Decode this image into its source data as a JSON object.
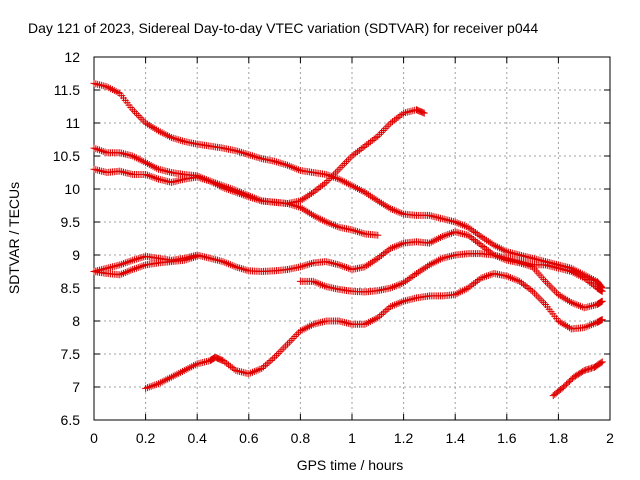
{
  "chart_data": {
    "type": "scatter",
    "title": "Day 121 of 2023, Sidereal Day-to-day VTEC variation (SDTVAR) for receiver p044",
    "xlabel": "GPS time / hours",
    "ylabel": "SDTVAR / TECUs",
    "xlim": [
      0,
      2
    ],
    "ylim": [
      6.5,
      12
    ],
    "xticks": [
      "0",
      "0.2",
      "0.4",
      "0.6",
      "0.8",
      "1",
      "1.2",
      "1.4",
      "1.6",
      "1.8",
      "2"
    ],
    "yticks": [
      "6.5",
      "7",
      "7.5",
      "8",
      "8.5",
      "9",
      "9.5",
      "10",
      "10.5",
      "11",
      "11.5",
      "12"
    ],
    "grid": true,
    "marker": "plus",
    "marker_color": "#e00000",
    "series": [
      {
        "name": "s1",
        "x": [
          0.0,
          0.05,
          0.1,
          0.15,
          0.2,
          0.25,
          0.3,
          0.35,
          0.4,
          0.45,
          0.5,
          0.55,
          0.6,
          0.65,
          0.7,
          0.75,
          0.8,
          0.85,
          0.9,
          0.95,
          1.0,
          1.05,
          1.1,
          1.15,
          1.2,
          1.25,
          1.3,
          1.35,
          1.4,
          1.45,
          1.5,
          1.55,
          1.6,
          1.65,
          1.7,
          1.75,
          1.8,
          1.85,
          1.9,
          1.95,
          1.97
        ],
        "y": [
          11.6,
          11.55,
          11.45,
          11.2,
          11.0,
          10.88,
          10.78,
          10.72,
          10.68,
          10.65,
          10.62,
          10.58,
          10.52,
          10.46,
          10.42,
          10.36,
          10.28,
          10.25,
          10.22,
          10.15,
          10.05,
          9.95,
          9.82,
          9.7,
          9.62,
          9.6,
          9.6,
          9.55,
          9.5,
          9.42,
          9.28,
          9.15,
          9.05,
          9.0,
          8.95,
          8.9,
          8.85,
          8.8,
          8.7,
          8.6,
          8.5
        ]
      },
      {
        "name": "s2",
        "x": [
          0.0,
          0.05,
          0.1,
          0.15,
          0.2,
          0.25,
          0.3,
          0.35,
          0.4,
          0.45,
          0.5,
          0.55,
          0.6,
          0.65,
          0.7,
          0.75,
          0.8,
          0.85,
          0.9,
          0.95,
          1.0,
          1.05,
          1.1
        ],
        "y": [
          10.62,
          10.55,
          10.55,
          10.5,
          10.4,
          10.3,
          10.25,
          10.22,
          10.2,
          10.12,
          10.02,
          9.95,
          9.88,
          9.82,
          9.8,
          9.78,
          9.72,
          9.6,
          9.5,
          9.42,
          9.38,
          9.32,
          9.3
        ]
      },
      {
        "name": "s3",
        "x": [
          0.0,
          0.05,
          0.1,
          0.15,
          0.2,
          0.25,
          0.3,
          0.35,
          0.4,
          0.45,
          0.5,
          0.55,
          0.6,
          0.65,
          0.7,
          0.75,
          0.8,
          0.85,
          0.9,
          0.95,
          1.0,
          1.05,
          1.1,
          1.15,
          1.2,
          1.25,
          1.28
        ],
        "y": [
          10.3,
          10.25,
          10.27,
          10.22,
          10.22,
          10.15,
          10.1,
          10.15,
          10.18,
          10.12,
          10.05,
          9.98,
          9.9,
          9.82,
          9.8,
          9.78,
          9.82,
          9.95,
          10.1,
          10.3,
          10.5,
          10.65,
          10.8,
          11.0,
          11.15,
          11.2,
          11.15
        ]
      },
      {
        "name": "s4",
        "x": [
          0.0,
          0.05,
          0.1,
          0.15,
          0.2,
          0.25,
          0.3,
          0.35,
          0.4,
          0.45,
          0.5,
          0.55,
          0.6,
          0.65,
          0.7,
          0.75,
          0.8,
          0.85,
          0.9,
          0.95,
          1.0,
          1.05,
          1.1,
          1.15,
          1.2,
          1.25,
          1.3,
          1.35,
          1.4,
          1.45,
          1.5,
          1.55,
          1.6,
          1.65,
          1.7,
          1.75,
          1.8,
          1.85,
          1.9,
          1.95,
          1.97
        ],
        "y": [
          8.75,
          8.8,
          8.85,
          8.92,
          8.98,
          8.95,
          8.92,
          8.95,
          9.0,
          8.95,
          8.9,
          8.82,
          8.76,
          8.75,
          8.76,
          8.78,
          8.82,
          8.88,
          8.9,
          8.85,
          8.78,
          8.82,
          8.95,
          9.1,
          9.18,
          9.2,
          9.18,
          9.28,
          9.35,
          9.3,
          9.15,
          9.0,
          8.92,
          8.88,
          8.82,
          8.6,
          8.4,
          8.28,
          8.2,
          8.25,
          8.3
        ]
      },
      {
        "name": "s5",
        "x": [
          0.0,
          0.05,
          0.1,
          0.15,
          0.2,
          0.25,
          0.3,
          0.35,
          0.4
        ],
        "y": [
          8.75,
          8.72,
          8.7,
          8.78,
          8.85,
          8.88,
          8.9,
          8.92,
          8.98
        ]
      },
      {
        "name": "s6",
        "x": [
          0.8,
          0.85,
          0.9,
          0.95,
          1.0,
          1.05,
          1.1,
          1.15,
          1.2,
          1.25,
          1.3,
          1.35,
          1.4,
          1.45,
          1.5,
          1.55,
          1.6,
          1.65,
          1.7,
          1.75,
          1.8,
          1.85,
          1.9,
          1.95,
          1.97
        ],
        "y": [
          8.6,
          8.6,
          8.52,
          8.48,
          8.45,
          8.44,
          8.46,
          8.5,
          8.58,
          8.72,
          8.85,
          8.95,
          9.0,
          9.02,
          9.02,
          9.0,
          8.95,
          8.9,
          8.85,
          8.85,
          8.8,
          8.75,
          8.65,
          8.5,
          8.45
        ]
      },
      {
        "name": "s7",
        "x": [
          0.2,
          0.25,
          0.3,
          0.35,
          0.4,
          0.45,
          0.47,
          0.5,
          0.55,
          0.6,
          0.65,
          0.7,
          0.75,
          0.8,
          0.85,
          0.9,
          0.95,
          1.0,
          1.05,
          1.1,
          1.15,
          1.2,
          1.25,
          1.3,
          1.35,
          1.4,
          1.45,
          1.5,
          1.55,
          1.6,
          1.65,
          1.7,
          1.75,
          1.8,
          1.85,
          1.9,
          1.95,
          1.97
        ],
        "y": [
          6.98,
          7.05,
          7.15,
          7.25,
          7.35,
          7.4,
          7.45,
          7.4,
          7.25,
          7.2,
          7.28,
          7.45,
          7.65,
          7.85,
          7.95,
          8.0,
          8.0,
          7.95,
          7.95,
          8.05,
          8.22,
          8.3,
          8.35,
          8.38,
          8.38,
          8.4,
          8.5,
          8.65,
          8.72,
          8.68,
          8.6,
          8.45,
          8.25,
          8.0,
          7.88,
          7.9,
          7.98,
          8.02
        ]
      },
      {
        "name": "s8",
        "x": [
          1.78,
          1.82,
          1.86,
          1.9,
          1.94,
          1.97
        ],
        "y": [
          6.87,
          7.0,
          7.15,
          7.25,
          7.3,
          7.38
        ]
      }
    ]
  }
}
